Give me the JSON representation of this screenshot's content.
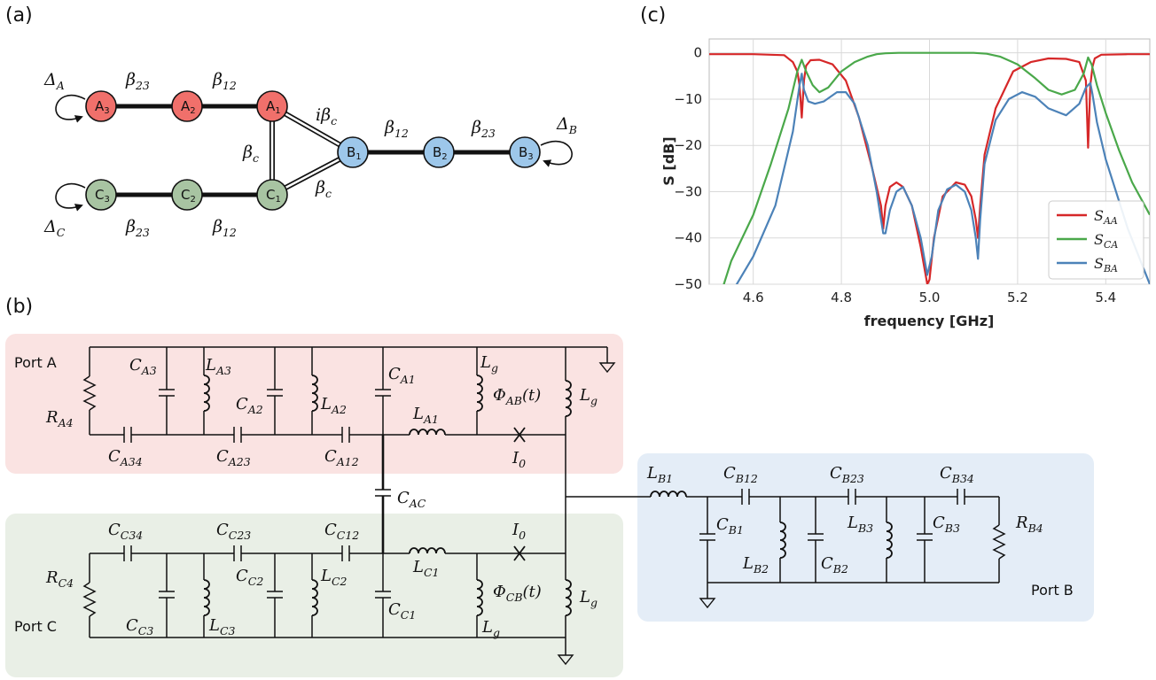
{
  "panel_labels": {
    "a": "(a)",
    "b": "(b)",
    "c": "(c)"
  },
  "graph": {
    "nodes": [
      {
        "id": "A3",
        "letter": "A",
        "index": "3",
        "color": "#f0706b"
      },
      {
        "id": "A2",
        "letter": "A",
        "index": "2",
        "color": "#f0706b"
      },
      {
        "id": "A1",
        "letter": "A",
        "index": "1",
        "color": "#f0706b"
      },
      {
        "id": "B1",
        "letter": "B",
        "index": "1",
        "color": "#9dc7ea"
      },
      {
        "id": "B2",
        "letter": "B",
        "index": "2",
        "color": "#9dc7ea"
      },
      {
        "id": "B3",
        "letter": "B",
        "index": "3",
        "color": "#9dc7ea"
      },
      {
        "id": "C3",
        "letter": "C",
        "index": "3",
        "color": "#a8c4a2"
      },
      {
        "id": "C2",
        "letter": "C",
        "index": "2",
        "color": "#a8c4a2"
      },
      {
        "id": "C1",
        "letter": "C",
        "index": "1",
        "color": "#a8c4a2"
      }
    ],
    "edge_labels": {
      "beta23_top": {
        "sym": "β",
        "sub": "23"
      },
      "beta12_top": {
        "sym": "β",
        "sub": "12"
      },
      "ibetac": {
        "pre": "i",
        "sym": "β",
        "sub": "c"
      },
      "betac_left": {
        "sym": "β",
        "sub": "c"
      },
      "betac_low": {
        "sym": "β",
        "sub": "c"
      },
      "beta12_right": {
        "sym": "β",
        "sub": "12"
      },
      "beta23_right": {
        "sym": "β",
        "sub": "23"
      },
      "beta23_bottom": {
        "sym": "β",
        "sub": "23"
      },
      "beta12_bottom": {
        "sym": "β",
        "sub": "12"
      },
      "delta_a": {
        "sym": "Δ",
        "sub": "A"
      },
      "delta_b": {
        "sym": "Δ",
        "sub": "B"
      },
      "delta_c": {
        "sym": "Δ",
        "sub": "C"
      }
    }
  },
  "circuit": {
    "colors": {
      "box_a": "#fae3e2",
      "box_c": "#e9efe6",
      "box_b": "#e4edf7"
    },
    "ports": {
      "a": "Port A",
      "b": "Port B",
      "c": "Port C"
    },
    "labels": {
      "RA4": {
        "sym": "R",
        "sub": "A4"
      },
      "CA3": {
        "sym": "C",
        "sub": "A3"
      },
      "LA3": {
        "sym": "L",
        "sub": "A3"
      },
      "CA2": {
        "sym": "C",
        "sub": "A2"
      },
      "LA2": {
        "sym": "L",
        "sub": "A2"
      },
      "CA1": {
        "sym": "C",
        "sub": "A1"
      },
      "LA1": {
        "sym": "L",
        "sub": "A1"
      },
      "Lg_a": {
        "sym": "L",
        "sub": "g"
      },
      "PhiAB": {
        "sym": "Φ",
        "sub": "AB",
        "post": "(t)"
      },
      "Lg_ar": {
        "sym": "L",
        "sub": "g"
      },
      "CA34": {
        "sym": "C",
        "sub": "A34"
      },
      "CA23": {
        "sym": "C",
        "sub": "A23"
      },
      "CA12": {
        "sym": "C",
        "sub": "A12"
      },
      "I0_a": {
        "sym": "I",
        "sub": "0"
      },
      "CAC": {
        "sym": "C",
        "sub": "AC"
      },
      "CC34": {
        "sym": "C",
        "sub": "C34"
      },
      "CC23": {
        "sym": "C",
        "sub": "C23"
      },
      "CC12": {
        "sym": "C",
        "sub": "C12"
      },
      "I0_c": {
        "sym": "I",
        "sub": "0"
      },
      "RC4": {
        "sym": "R",
        "sub": "C4"
      },
      "CC2": {
        "sym": "C",
        "sub": "C2"
      },
      "LC2": {
        "sym": "L",
        "sub": "C2"
      },
      "LC1": {
        "sym": "L",
        "sub": "C1"
      },
      "PhiCB": {
        "sym": "Φ",
        "sub": "CB",
        "post": "(t)"
      },
      "Lg_cr": {
        "sym": "L",
        "sub": "g"
      },
      "CC3": {
        "sym": "C",
        "sub": "C3"
      },
      "LC3": {
        "sym": "L",
        "sub": "C3"
      },
      "CC1": {
        "sym": "C",
        "sub": "C1"
      },
      "Lg_c": {
        "sym": "L",
        "sub": "g"
      },
      "LB1": {
        "sym": "L",
        "sub": "B1"
      },
      "CB12": {
        "sym": "C",
        "sub": "B12"
      },
      "CB23": {
        "sym": "C",
        "sub": "B23"
      },
      "CB34": {
        "sym": "C",
        "sub": "B34"
      },
      "CB1": {
        "sym": "C",
        "sub": "B1"
      },
      "LB2": {
        "sym": "L",
        "sub": "B2"
      },
      "CB2": {
        "sym": "C",
        "sub": "B2"
      },
      "LB3": {
        "sym": "L",
        "sub": "B3"
      },
      "CB3": {
        "sym": "C",
        "sub": "B3"
      },
      "RB4": {
        "sym": "R",
        "sub": "B4"
      }
    }
  },
  "chart_data": {
    "type": "line",
    "xlabel": "frequency [GHz]",
    "ylabel": "S [dB]",
    "xlim": [
      4.5,
      5.5
    ],
    "ylim": [
      -50,
      3
    ],
    "xticks": [
      "4.6",
      "4.8",
      "5.0",
      "5.2",
      "5.4"
    ],
    "yticks": [
      "0",
      "−10",
      "−20",
      "−30",
      "−40",
      "−50"
    ],
    "grid": true,
    "legend_position": "lower-right",
    "series": [
      {
        "name": "S",
        "sub": "AA",
        "color": "#d62728",
        "x": [
          4.5,
          4.6,
          4.67,
          4.69,
          4.7,
          4.705,
          4.71,
          4.715,
          4.72,
          4.73,
          4.75,
          4.78,
          4.81,
          4.84,
          4.87,
          4.89,
          4.895,
          4.9,
          4.91,
          4.925,
          4.94,
          4.96,
          4.98,
          4.995,
          5.0,
          5.01,
          5.03,
          5.06,
          5.08,
          5.095,
          5.105,
          5.11,
          5.115,
          5.125,
          5.15,
          5.19,
          5.23,
          5.27,
          5.31,
          5.34,
          5.355,
          5.36,
          5.365,
          5.37,
          5.375,
          5.39,
          5.45,
          5.5
        ],
        "y": [
          -0.3,
          -0.3,
          -0.5,
          -2,
          -4,
          -7,
          -14,
          -6,
          -2.8,
          -1.6,
          -1.5,
          -2.5,
          -6,
          -14,
          -25,
          -33,
          -38,
          -33,
          -29,
          -28,
          -29,
          -33,
          -42,
          -50,
          -49,
          -40,
          -31,
          -28,
          -28.5,
          -31,
          -36,
          -40,
          -33,
          -22,
          -12,
          -4,
          -2,
          -1.2,
          -1.3,
          -2,
          -6,
          -20.5,
          -7,
          -3,
          -1.2,
          -0.4,
          -0.3,
          -0.3
        ]
      },
      {
        "name": "S",
        "sub": "CA",
        "color": "#4aa84a",
        "x": [
          4.5,
          4.55,
          4.6,
          4.64,
          4.68,
          4.7,
          4.71,
          4.72,
          4.735,
          4.75,
          4.77,
          4.8,
          4.83,
          4.86,
          4.88,
          4.9,
          4.93,
          4.96,
          5.0,
          5.05,
          5.1,
          5.13,
          5.16,
          5.2,
          5.24,
          5.27,
          5.3,
          5.33,
          5.35,
          5.36,
          5.368,
          5.38,
          5.4,
          5.43,
          5.46,
          5.5
        ],
        "y": [
          -60,
          -45,
          -35,
          -24,
          -12,
          -4,
          -1.5,
          -4,
          -7,
          -8.5,
          -7.5,
          -4,
          -2,
          -0.8,
          -0.3,
          -0.1,
          0,
          0,
          0,
          0,
          0,
          -0.2,
          -0.8,
          -2.5,
          -5.5,
          -8,
          -9,
          -8,
          -4.5,
          -1,
          -2.5,
          -7,
          -13,
          -21,
          -28,
          -35
        ]
      },
      {
        "name": "S",
        "sub": "BA",
        "color": "#4c82b8",
        "x": [
          4.5,
          4.6,
          4.65,
          4.69,
          4.705,
          4.71,
          4.715,
          4.725,
          4.74,
          4.76,
          4.79,
          4.81,
          4.83,
          4.86,
          4.88,
          4.89,
          4.895,
          4.9,
          4.91,
          4.925,
          4.94,
          4.96,
          4.98,
          4.995,
          5.005,
          5.02,
          5.04,
          5.06,
          5.08,
          5.095,
          5.105,
          5.11,
          5.115,
          5.125,
          5.15,
          5.18,
          5.21,
          5.24,
          5.27,
          5.31,
          5.34,
          5.355,
          5.365,
          5.37,
          5.38,
          5.4,
          5.45,
          5.5
        ],
        "y": [
          -60,
          -44,
          -33,
          -17,
          -7,
          -4.5,
          -8,
          -10.5,
          -11,
          -10.5,
          -8.5,
          -8.5,
          -11,
          -20,
          -30,
          -36,
          -39,
          -39,
          -34,
          -30,
          -29,
          -33,
          -40,
          -48,
          -44,
          -34,
          -29.5,
          -28.5,
          -30,
          -34,
          -40,
          -44.5,
          -36,
          -24,
          -14.5,
          -10,
          -8.5,
          -9.5,
          -12,
          -13.5,
          -11,
          -7.5,
          -6.5,
          -9,
          -15,
          -23,
          -38,
          -50
        ]
      }
    ]
  }
}
